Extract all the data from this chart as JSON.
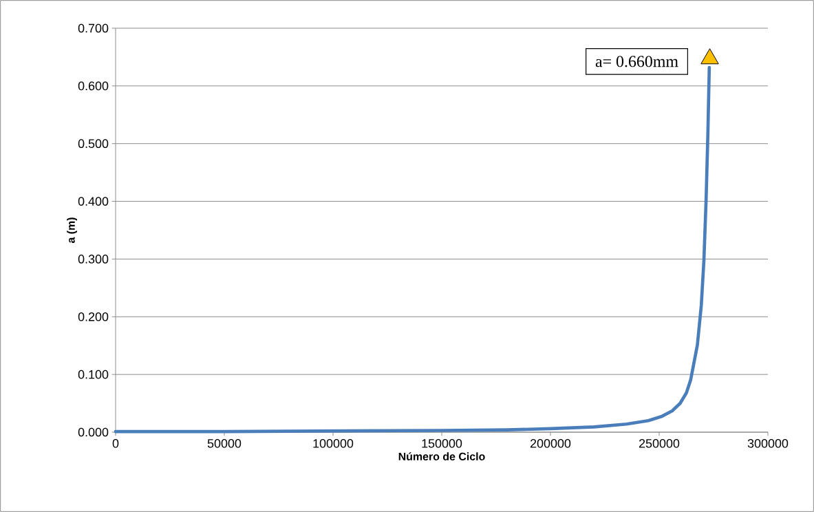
{
  "chart_data": {
    "type": "line",
    "xlabel": "Número de Ciclo",
    "ylabel": "a (m)",
    "xlim": [
      0,
      300000
    ],
    "ylim": [
      0,
      0.7
    ],
    "xticks": [
      0,
      50000,
      100000,
      150000,
      200000,
      250000,
      300000
    ],
    "yticks": [
      {
        "value": 0,
        "label": "0.000"
      },
      {
        "value": 0.1,
        "label": "0.100"
      },
      {
        "value": 0.2,
        "label": "0.200"
      },
      {
        "value": 0.3,
        "label": "0.300"
      },
      {
        "value": 0.4,
        "label": "0.400"
      },
      {
        "value": 0.5,
        "label": "0.500"
      },
      {
        "value": 0.6,
        "label": "0.600"
      },
      {
        "value": 0.7,
        "label": "0.700"
      }
    ],
    "grid": "y",
    "marker": "none",
    "line_style": "solid",
    "series": [
      {
        "color": "#4a7ebb",
        "x": [
          0,
          50000,
          100000,
          150000,
          180000,
          200000,
          220000,
          235000,
          245000,
          251000,
          256000,
          259650,
          262500,
          264500,
          267560,
          269370,
          270570,
          271580,
          272400,
          273040
        ],
        "values": [
          0.001,
          0.001,
          0.002,
          0.003,
          0.004,
          0.006,
          0.009,
          0.014,
          0.02,
          0.027,
          0.037,
          0.05,
          0.068,
          0.091,
          0.151,
          0.22,
          0.298,
          0.403,
          0.518,
          0.632
        ]
      },
      {
        "type": "scatter",
        "marker": "triangle",
        "color": "#ffc000",
        "x": [
          273260
        ],
        "values": [
          0.647
        ]
      }
    ],
    "annotations": [
      "a= 0.660mm"
    ]
  }
}
